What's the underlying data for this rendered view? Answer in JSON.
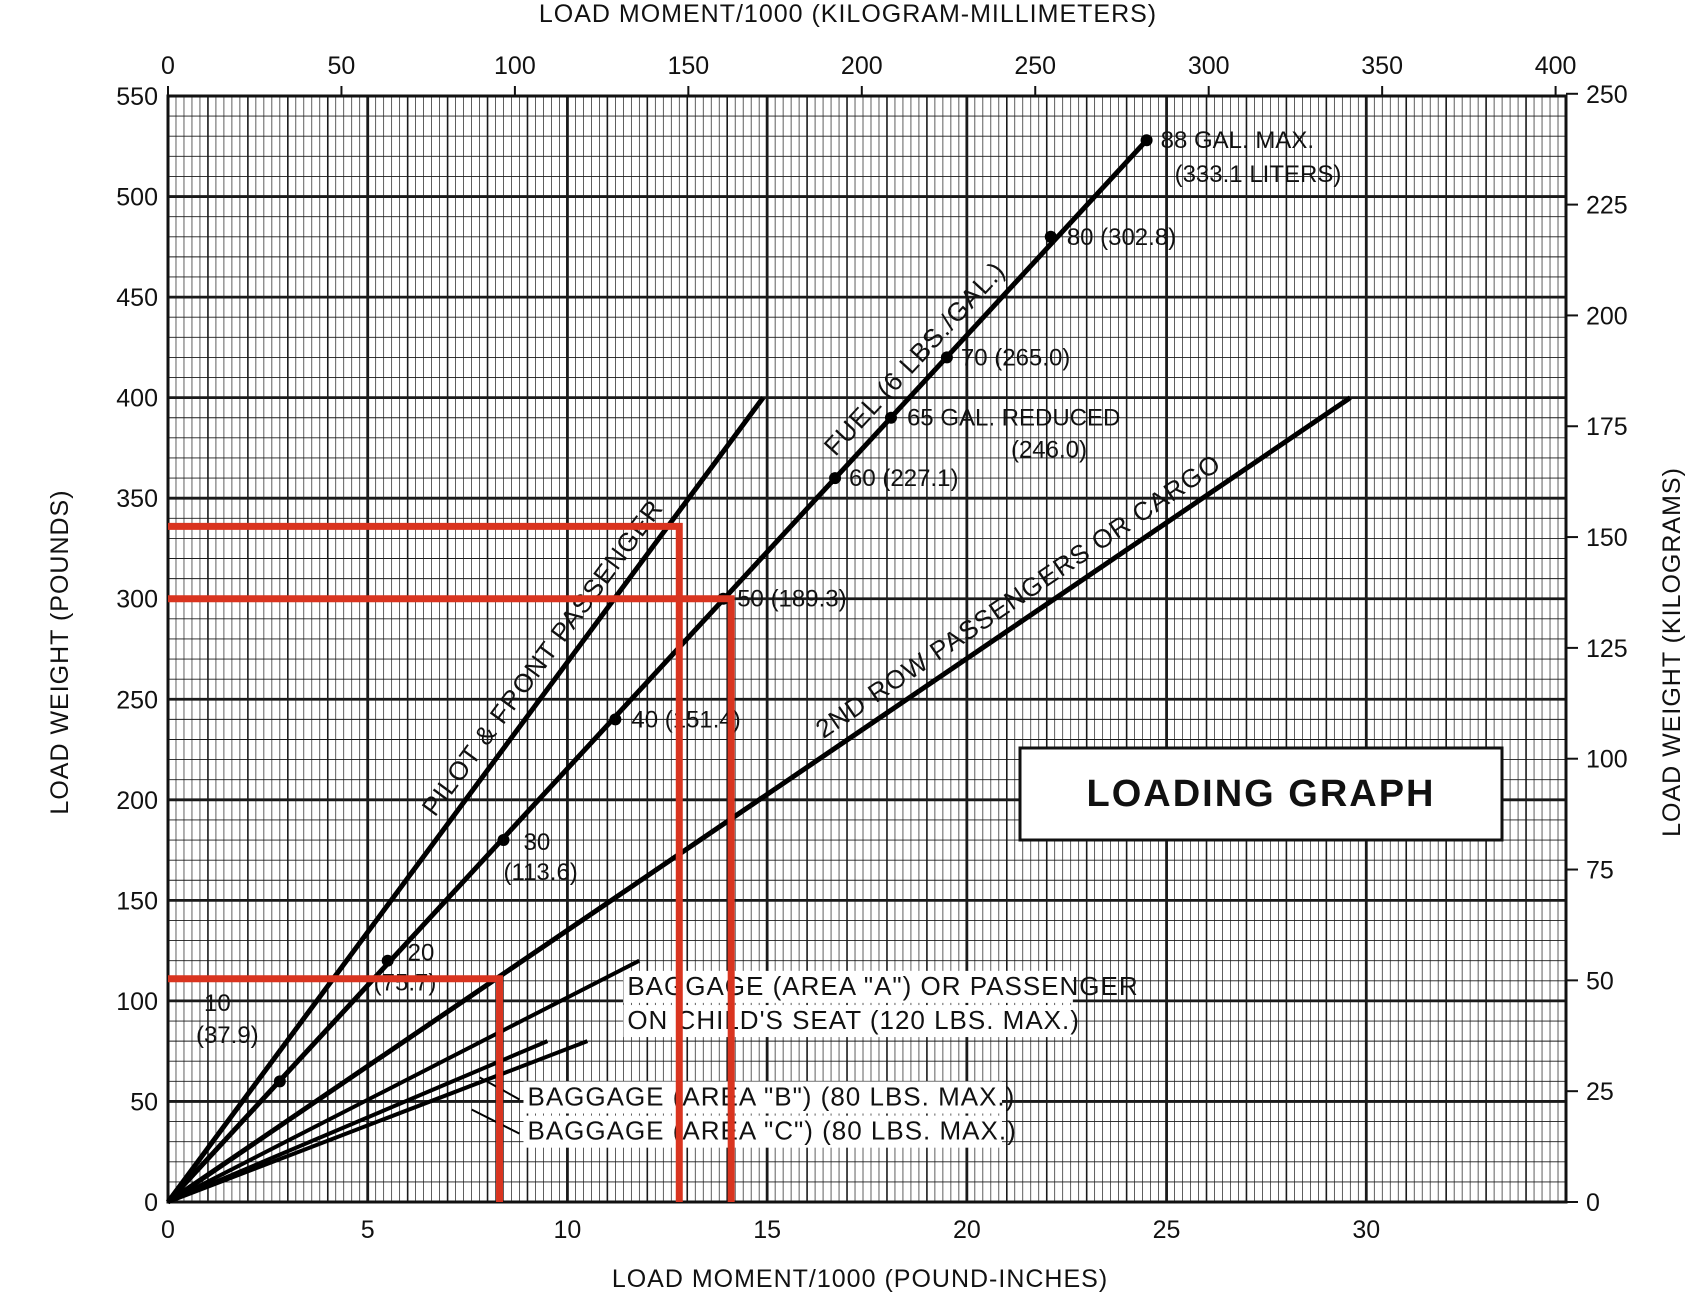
{
  "chart_data": {
    "type": "line",
    "title": "LOADING GRAPH",
    "xlabel_bottom": "LOAD MOMENT/1000 (POUND-INCHES)",
    "xlabel_top": "LOAD MOMENT/1000 (KILOGRAM-MILLIMETERS)",
    "ylabel_left": "LOAD WEIGHT (POUNDS)",
    "ylabel_right": "LOAD WEIGHT (KILOGRAMS)",
    "xlim": [
      0,
      35
    ],
    "ylim": [
      0,
      550
    ],
    "top_xlim": [
      0,
      403
    ],
    "right_ylim": [
      0,
      249.5
    ],
    "x_ticks": [
      "0",
      "5",
      "10",
      "15",
      "20",
      "25",
      "30"
    ],
    "x_tick_values": [
      0,
      5,
      10,
      15,
      20,
      25,
      30
    ],
    "y_ticks": [
      "0",
      "50",
      "100",
      "150",
      "200",
      "250",
      "300",
      "350",
      "400",
      "450",
      "500",
      "550"
    ],
    "y_tick_values": [
      0,
      50,
      100,
      150,
      200,
      250,
      300,
      350,
      400,
      450,
      500,
      550
    ],
    "top_ticks": [
      "0",
      "50",
      "100",
      "150",
      "200",
      "250",
      "300",
      "350",
      "400"
    ],
    "top_tick_values": [
      0,
      50,
      100,
      150,
      200,
      250,
      300,
      350,
      400
    ],
    "right_ticks": [
      "0",
      "25",
      "50",
      "75",
      "100",
      "125",
      "150",
      "175",
      "200",
      "225",
      "250"
    ],
    "right_tick_values": [
      0,
      25,
      50,
      75,
      100,
      125,
      150,
      175,
      200,
      225,
      250
    ],
    "grid": true,
    "series": [
      {
        "name": "PILOT & FRONT PASSENGER",
        "label": "PILOT & FRONT PASSENGER",
        "x": [
          0,
          14.9
        ],
        "y": [
          0,
          400
        ]
      },
      {
        "name": "FUEL (6 LBS./GAL.)",
        "label": "FUEL (6 LBS./GAL.)",
        "x": [
          0,
          24.5
        ],
        "y": [
          0,
          528
        ]
      },
      {
        "name": "2ND ROW PASSENGERS OR CARGO",
        "label": "2ND ROW PASSENGERS OR CARGO",
        "x": [
          0,
          29.6
        ],
        "y": [
          0,
          400
        ]
      },
      {
        "name": "BAGGAGE (AREA \"A\") OR PASSENGER ON CHILD'S SEAT (120 LBS. MAX.)",
        "x": [
          0,
          11.8
        ],
        "y": [
          0,
          120
        ]
      },
      {
        "name": "BAGGAGE (AREA \"B\") (80 LBS. MAX.)",
        "x": [
          0,
          10.5
        ],
        "y": [
          0,
          80
        ]
      },
      {
        "name": "BAGGAGE (AREA \"C\") (80 LBS. MAX.)",
        "x": [
          0,
          9.5
        ],
        "y": [
          0,
          80
        ]
      }
    ],
    "fuel_points": [
      {
        "x": 2.8,
        "y": 60,
        "label": "10",
        "label2": "(37.9)"
      },
      {
        "x": 5.5,
        "y": 120,
        "label": "20",
        "label2": "(75.7)"
      },
      {
        "x": 8.4,
        "y": 180,
        "label": "30",
        "label2": "(113.6)"
      },
      {
        "x": 11.2,
        "y": 240,
        "label": "40 (151.4)"
      },
      {
        "x": 13.9,
        "y": 300,
        "label": "50 (189.3)"
      },
      {
        "x": 16.7,
        "y": 360,
        "label": "60 (227.1)"
      },
      {
        "x": 18.1,
        "y": 390,
        "label": "65 GAL. REDUCED",
        "label2": "(246.0)"
      },
      {
        "x": 19.5,
        "y": 420,
        "label": "70 (265.0)"
      },
      {
        "x": 22.1,
        "y": 480,
        "label": "80 (302.8)"
      },
      {
        "x": 24.5,
        "y": 528,
        "label": "88 GAL. MAX.",
        "label2": "(333.1 LITERS)"
      }
    ],
    "annotations": [
      "BAGGAGE (AREA \"A\") OR PASSENGER",
      "ON CHILD'S SEAT (120 LBS. MAX.)",
      "BAGGAGE (AREA \"B\") (80 LBS. MAX.)",
      "BAGGAGE (AREA \"C\") (80 LBS. MAX.)"
    ],
    "reference_lines": [
      {
        "y": 336,
        "x": 12.8
      },
      {
        "y": 300,
        "x": 14.1
      },
      {
        "y": 111,
        "x": 8.3
      }
    ],
    "reference_color": "#d9341f"
  }
}
